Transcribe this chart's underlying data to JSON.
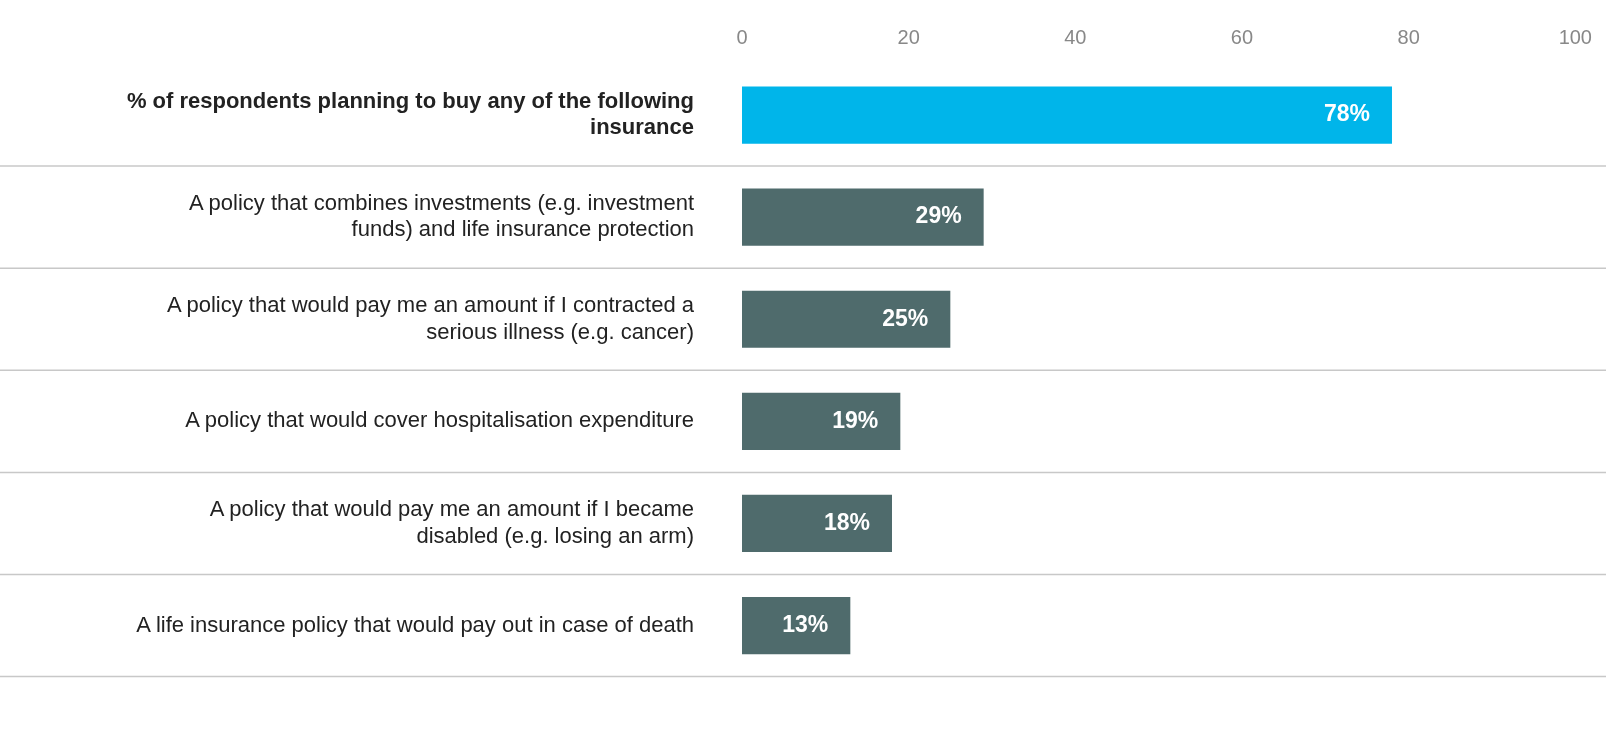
{
  "chart_data": {
    "type": "bar",
    "orientation": "horizontal",
    "categories": [
      "% of respondents planning to buy any of the following insurance",
      "A policy that combines investments (e.g. investment funds) and life insurance protection",
      "A policy that would pay me an amount if I contracted a serious illness (e.g. cancer)",
      "A policy that would cover hospitalisation expenditure",
      "A policy that would pay me an amount if I became disabled (e.g. losing an arm)",
      "A life insurance policy that would pay out in case of death"
    ],
    "values": [
      78,
      29,
      25,
      19,
      18,
      13
    ],
    "colors": [
      "#00b5ea",
      "#4f6b6c",
      "#4f6b6c",
      "#4f6b6c",
      "#4f6b6c",
      "#4f6b6c"
    ],
    "value_labels": [
      "78%",
      "29%",
      "25%",
      "19%",
      "18%",
      "13%"
    ],
    "xlim": [
      0,
      100
    ],
    "xticks": [
      0,
      20,
      40,
      60,
      80,
      100
    ],
    "grid": "y",
    "legend": false
  }
}
